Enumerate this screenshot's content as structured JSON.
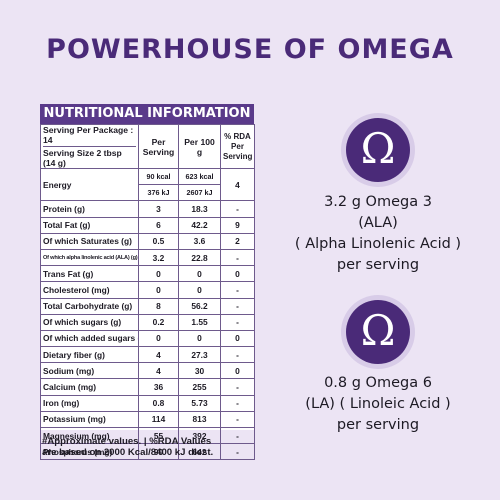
{
  "headline": "POWERHOUSE OF OMEGA",
  "panel": {
    "title": "NUTRITIONAL INFORMATION",
    "serving_per_package": "Serving Per Package : 14",
    "serving_size": "Serving Size 2 tbsp (14 g)",
    "col_per_serving": "Per Serving",
    "col_per_100g": "Per 100 g",
    "col_rda": "% RDA Per Serving",
    "energy_label": "Energy",
    "energy_kcal_serving": "90 kcal",
    "energy_kcal_100g": "623 kcal",
    "energy_kj_serving": "376 kJ",
    "energy_kj_100g": "2607 kJ",
    "energy_rda": "4",
    "rows": [
      {
        "name": "Protein (g)",
        "serving": "3",
        "per100": "18.3",
        "rda": "-"
      },
      {
        "name": "Total Fat (g)",
        "serving": "6",
        "per100": "42.2",
        "rda": "9"
      },
      {
        "name": "Of which Saturates (g)",
        "serving": "0.5",
        "per100": "3.6",
        "rda": "2"
      },
      {
        "name": "Of which alpha linolenic acid (ALA) (g)",
        "serving": "3.2",
        "per100": "22.8",
        "rda": "-"
      },
      {
        "name": "Trans Fat (g)",
        "serving": "0",
        "per100": "0",
        "rda": "0"
      },
      {
        "name": "Cholesterol (mg)",
        "serving": "0",
        "per100": "0",
        "rda": "-"
      },
      {
        "name": "Total Carbohydrate (g)",
        "serving": "8",
        "per100": "56.2",
        "rda": "-"
      },
      {
        "name": "Of which sugars (g)",
        "serving": "0.2",
        "per100": "1.55",
        "rda": "-"
      },
      {
        "name": "Of which added sugars (g)",
        "serving": "0",
        "per100": "0",
        "rda": "0"
      },
      {
        "name": "Dietary fiber (g)",
        "serving": "4",
        "per100": "27.3",
        "rda": "-"
      },
      {
        "name": "Sodium (mg)",
        "serving": "4",
        "per100": "30",
        "rda": "0"
      },
      {
        "name": "Calcium (mg)",
        "serving": "36",
        "per100": "255",
        "rda": "-"
      },
      {
        "name": "Iron (mg)",
        "serving": "0.8",
        "per100": "5.73",
        "rda": "-"
      },
      {
        "name": "Potassium (mg)",
        "serving": "114",
        "per100": "813",
        "rda": "-"
      },
      {
        "name": "Magnesium (mg)",
        "serving": "55",
        "per100": "392",
        "rda": "-"
      },
      {
        "name": "Phosphorus (mg)",
        "serving": "90",
        "per100": "642",
        "rda": "-"
      }
    ],
    "footnote_line1": "#Approximate values. | %RDA Values",
    "footnote_line2": "are based on 2000 Kcal/8400 kJ diest."
  },
  "omega3": {
    "symbol": "Ω",
    "line1": "3.2 g Omega 3",
    "line2": "(ALA)",
    "line3": "( Alpha Linolenic Acid )",
    "line4": "per serving"
  },
  "omega6": {
    "symbol": "Ω",
    "line1": "0.8 g Omega 6",
    "line2": "(LA) ( Linoleic Acid )",
    "line3": "per serving"
  },
  "colors": {
    "accent": "#4a2a78",
    "header_band": "#5a3a8a",
    "background": "#ece4f4"
  }
}
